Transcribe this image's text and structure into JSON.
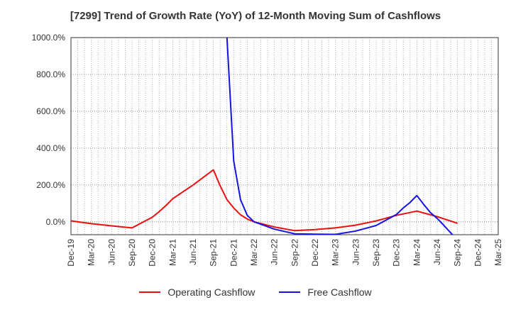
{
  "chart_data": {
    "type": "line",
    "title": "[7299]  Trend of Growth Rate (YoY) of 12-Month Moving Sum of Cashflows",
    "xlabel": "",
    "ylabel": "",
    "ylim": [
      -70,
      1000
    ],
    "y_ticks": [
      0,
      200,
      400,
      600,
      800,
      1000
    ],
    "y_tick_labels": [
      "0.0%",
      "200.0%",
      "400.0%",
      "600.0%",
      "800.0%",
      "1000.0%"
    ],
    "x_tick_labels": [
      "Dec-19",
      "Mar-20",
      "Jun-20",
      "Sep-20",
      "Dec-20",
      "Mar-21",
      "Jun-21",
      "Sep-21",
      "Dec-21",
      "Mar-22",
      "Jun-22",
      "Sep-22",
      "Dec-22",
      "Mar-23",
      "Jun-23",
      "Sep-23",
      "Dec-23",
      "Mar-24",
      "Jun-24",
      "Sep-24",
      "Dec-24",
      "Mar-25"
    ],
    "months": [
      "2019-12",
      "2020-01",
      "2020-02",
      "2020-03",
      "2020-04",
      "2020-05",
      "2020-06",
      "2020-07",
      "2020-08",
      "2020-09",
      "2020-10",
      "2020-11",
      "2020-12",
      "2021-01",
      "2021-02",
      "2021-03",
      "2021-04",
      "2021-05",
      "2021-06",
      "2021-07",
      "2021-08",
      "2021-09",
      "2021-10",
      "2021-11",
      "2021-12",
      "2022-01",
      "2022-02",
      "2022-03",
      "2022-04",
      "2022-05",
      "2022-06",
      "2022-07",
      "2022-08",
      "2022-09",
      "2022-10",
      "2022-11",
      "2022-12",
      "2023-01",
      "2023-02",
      "2023-03",
      "2023-04",
      "2023-05",
      "2023-06",
      "2023-07",
      "2023-08",
      "2023-09",
      "2023-10",
      "2023-11",
      "2023-12",
      "2024-01",
      "2024-02",
      "2024-03",
      "2024-04",
      "2024-05",
      "2024-06",
      "2024-07",
      "2024-08",
      "2024-09",
      "2024-10",
      "2024-11",
      "2024-12",
      "2025-01",
      "2025-02",
      "2025-03"
    ],
    "grid": true,
    "legend_position": "bottom",
    "series": [
      {
        "name": "Operating Cashflow",
        "color": "#e8100e",
        "points": [
          [
            "2019-12",
            5
          ],
          [
            "2020-03",
            -10
          ],
          [
            "2020-06",
            -22
          ],
          [
            "2020-09",
            -33
          ],
          [
            "2020-12",
            25
          ],
          [
            "2021-01",
            55
          ],
          [
            "2021-02",
            88
          ],
          [
            "2021-03",
            125
          ],
          [
            "2021-06",
            200
          ],
          [
            "2021-09",
            282
          ],
          [
            "2021-10",
            195
          ],
          [
            "2021-11",
            120
          ],
          [
            "2021-12",
            75
          ],
          [
            "2022-01",
            38
          ],
          [
            "2022-02",
            15
          ],
          [
            "2022-03",
            0
          ],
          [
            "2022-06",
            -28
          ],
          [
            "2022-09",
            -48
          ],
          [
            "2022-12",
            -42
          ],
          [
            "2023-03",
            -33
          ],
          [
            "2023-06",
            -18
          ],
          [
            "2023-09",
            5
          ],
          [
            "2023-12",
            35
          ],
          [
            "2024-03",
            58
          ],
          [
            "2024-06",
            28
          ],
          [
            "2024-09",
            -8
          ]
        ]
      },
      {
        "name": "Free Cashflow",
        "color": "#1414e0",
        "points": [
          [
            "2021-11",
            1000
          ],
          [
            "2021-12",
            330
          ],
          [
            "2022-01",
            120
          ],
          [
            "2022-02",
            35
          ],
          [
            "2022-03",
            0
          ],
          [
            "2022-06",
            -40
          ],
          [
            "2022-09",
            -65
          ],
          [
            "2022-12",
            -67
          ],
          [
            "2023-03",
            -68
          ],
          [
            "2023-06",
            -50
          ],
          [
            "2023-09",
            -20
          ],
          [
            "2023-12",
            40
          ],
          [
            "2024-01",
            75
          ],
          [
            "2024-02",
            105
          ],
          [
            "2024-03",
            143
          ],
          [
            "2024-04",
            95
          ],
          [
            "2024-05",
            50
          ],
          [
            "2024-06",
            18
          ],
          [
            "2024-07",
            -20
          ],
          [
            "2024-08",
            -60
          ],
          [
            "2024-09",
            -100
          ]
        ]
      }
    ]
  }
}
